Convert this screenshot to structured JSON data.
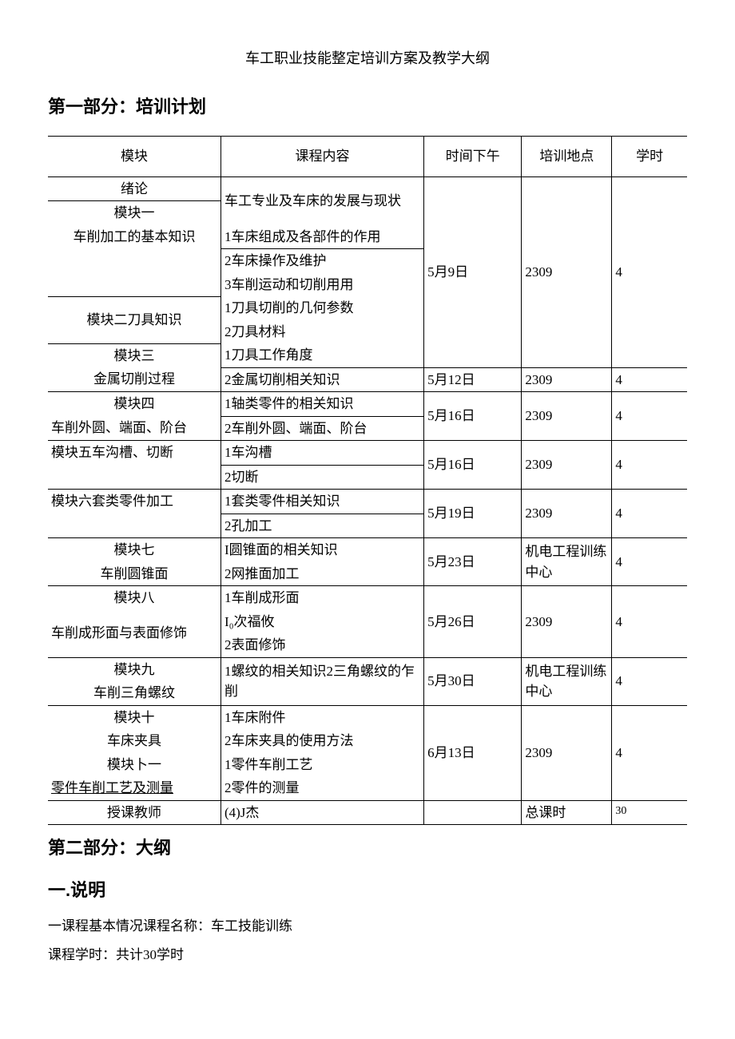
{
  "doc_title": "车工职业技能整定培训方案及教学大纲",
  "section1_heading": "第一部分：培训计划",
  "section2_heading": "第二部分：大纲",
  "sub_heading": "一.说明",
  "para1": "一课程基本情况课程名称：车工技能训练",
  "para2": "课程学时：共计30学时",
  "columns": {
    "module": "模块",
    "content": "课程内容",
    "time": "时间下午",
    "location": "培训地点",
    "hours": "学时"
  },
  "rows": {
    "r0m": "绪论",
    "r0c": "车工专业及车床的发展与现状",
    "r1m": "模块一",
    "r1m2": "车削加工的基本知识",
    "r1c": "1车床组成及各部件的作用",
    "r2c": "2车床操作及维护",
    "r3c": "3车削运动和切削用用",
    "r4m": "模块二刀具知识",
    "r4c": "1刀具切削的几何参数",
    "r5c": "2刀具材料",
    "r6m": "模块三",
    "r6m2": "金属切削过程",
    "r6c": "1刀具工作角度",
    "r7c": "2金属切削相关知识",
    "r8m": "模块四",
    "r8m2": "车削外圆、端面、阶台",
    "r8c": "1轴类零件的相关知识",
    "r9c": "2车削外圆、端面、阶台",
    "r10m": "模块五车沟槽、切断",
    "r10c": "1车沟槽",
    "r11c": "2切断",
    "r12m": "模块六套类零件加工",
    "r12c": "1套类零件相关知识",
    "r13c": "2孔加工",
    "r14m": "模块七",
    "r14m2": "车削圆锥面",
    "r14c": "I圆锥面的相关知识",
    "r15c": "2网推面加工",
    "r16m": "模块八",
    "r16m2": "车削成形面与表面修饰",
    "r16c": "1车削成形面",
    "r17c": "I₀次福攸",
    "r18c": "2表面修饰",
    "r19m": "模块九",
    "r19m2": "车削三角螺纹",
    "r19c": "1螺纹的相关知识2三角螺纹的乍削",
    "r20m": "模块十",
    "r20m2": "车床夹具",
    "r20c": "1车床附件",
    "r21c": "2车床夹具的使用方法",
    "r22m": "模块卜一",
    "r22m2": "零件车削工艺及测量",
    "r22c": "1零件车削工艺",
    "r23c": "2零件的测量",
    "teacher_lbl": "授课教师",
    "teacher_val": "(4)J杰",
    "total_lbl": "总课时",
    "total_val": "30"
  },
  "dates": {
    "d1": "5月9日",
    "d2": "5月12日",
    "d3": "5月16日",
    "d4": "5月16日",
    "d5": "5月19日",
    "d6": "5月23日",
    "d7": "5月26日",
    "d8": "5月30日",
    "d9": "6月13日"
  },
  "loc": {
    "room": "2309",
    "center": "机电工程训练中心"
  },
  "hours": {
    "h4": "4"
  }
}
